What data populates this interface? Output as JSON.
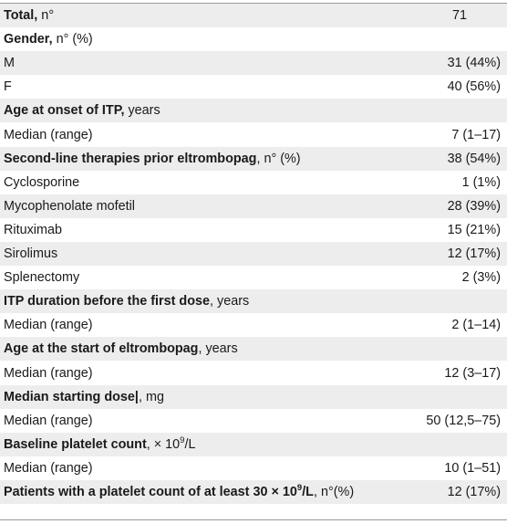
{
  "rows": [
    {
      "bold": "Total,",
      "rest": " n°",
      "value": "71",
      "header": true,
      "center": true
    },
    {
      "bold": "Gender,",
      "rest": " n° (%)",
      "value": "",
      "header": false
    },
    {
      "bold": "",
      "rest": "M",
      "value": "31 (44%)",
      "header": true
    },
    {
      "bold": "",
      "rest": "F",
      "value": "40 (56%)",
      "header": false
    },
    {
      "bold": "Age at onset of ITP,",
      "rest": " years",
      "value": "",
      "header": true
    },
    {
      "bold": "",
      "rest": "Median (range)",
      "value": "7 (1–17)",
      "header": false
    },
    {
      "bold": "Second-line therapies prior eltrombopag",
      "rest": ", n° (%)",
      "value": "38 (54%)",
      "header": true
    },
    {
      "bold": "",
      "rest": "Cyclosporine",
      "value": "1 (1%)",
      "header": false
    },
    {
      "bold": "",
      "rest": "Mycophenolate mofetil",
      "value": "28 (39%)",
      "header": true
    },
    {
      "bold": "",
      "rest": "Rituximab",
      "value": "15 (21%)",
      "header": false
    },
    {
      "bold": "",
      "rest": "Sirolimus",
      "value": "12 (17%)",
      "header": true
    },
    {
      "bold": "",
      "rest": "Splenectomy",
      "value": "2 (3%)",
      "header": false
    },
    {
      "bold": "ITP duration before the first dose",
      "rest": ", years",
      "value": "",
      "header": true
    },
    {
      "bold": "",
      "rest": "Median (range)",
      "value": "2 (1–14)",
      "header": false
    },
    {
      "bold": "Age at the start of eltrombopag",
      "rest": ", years",
      "value": "",
      "header": true
    },
    {
      "bold": "",
      "rest": "Median (range)",
      "value": "12 (3–17)",
      "header": false
    },
    {
      "bold": "Median starting dose|",
      "rest": ", mg",
      "value": "",
      "header": true
    },
    {
      "bold": "",
      "rest": "Median (range)",
      "value": "50 (12,5–75)",
      "header": false
    },
    {
      "bold": "Baseline platelet count",
      "rest": ", × 10",
      "sup": "9",
      "rest2": "/L",
      "value": "",
      "header": true
    },
    {
      "bold": "",
      "rest": "Median (range)",
      "value": "10 (1–51)",
      "header": false
    },
    {
      "bold": "Patients with a platelet count of at least 30 × 10",
      "boldsup": "9",
      "bold2": "/L",
      "rest": ", n°(%)",
      "value": "12 (17%)",
      "header": true
    }
  ]
}
